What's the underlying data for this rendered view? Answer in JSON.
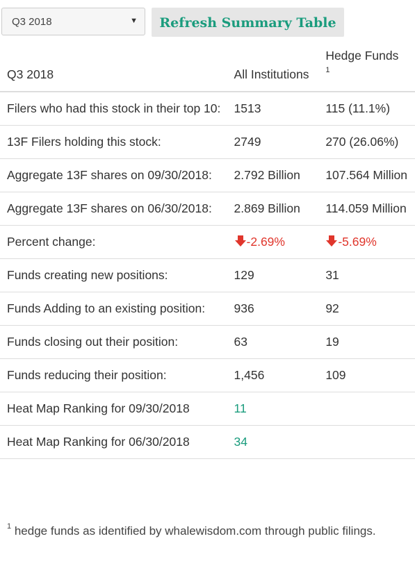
{
  "colors": {
    "accent": "#1a9c7d",
    "negative": "#e0362c",
    "border": "#dddddd"
  },
  "controls": {
    "quarter_select": {
      "value": "Q3 2018",
      "options": [
        "Q3 2018"
      ]
    },
    "refresh_label": "Refresh Summary Table"
  },
  "table": {
    "headers": {
      "period": "Q3 2018",
      "all": "All Institutions",
      "hedge": "Hedge Funds",
      "hedge_note": "1"
    },
    "rows": [
      {
        "label": "Filers who had this stock in their top 10:",
        "all": "1513",
        "hedge": "115 (11.1%)"
      },
      {
        "label": "13F Filers holding this stock:",
        "all": "2749",
        "hedge": "270 (26.06%)"
      },
      {
        "label": "Aggregate 13F shares on 09/30/2018:",
        "all": "2.792 Billion",
        "hedge": "107.564 Million"
      },
      {
        "label": "Aggregate 13F shares on 06/30/2018:",
        "all": "2.869 Billion",
        "hedge": "114.059 Million"
      },
      {
        "label": "Percent change:",
        "all": "-2.69%",
        "hedge": "-5.69%",
        "all_icon": "down-arrow-icon",
        "hedge_icon": "down-arrow-icon"
      },
      {
        "label": "Funds creating new positions:",
        "all": "129",
        "hedge": "31"
      },
      {
        "label": "Funds Adding to an existing position:",
        "all": "936",
        "hedge": "92"
      },
      {
        "label": "Funds closing out their position:",
        "all": "63",
        "hedge": "19"
      },
      {
        "label": "Funds reducing their position:",
        "all": "1,456",
        "hedge": "109"
      },
      {
        "label": "Heat Map Ranking for 09/30/2018",
        "all": "11",
        "hedge": ""
      },
      {
        "label": "Heat Map Ranking for 06/30/2018",
        "all": "34",
        "hedge": ""
      }
    ]
  },
  "footnote": {
    "marker": "1",
    "text": " hedge funds as identified by whalewisdom.com through public filings."
  }
}
